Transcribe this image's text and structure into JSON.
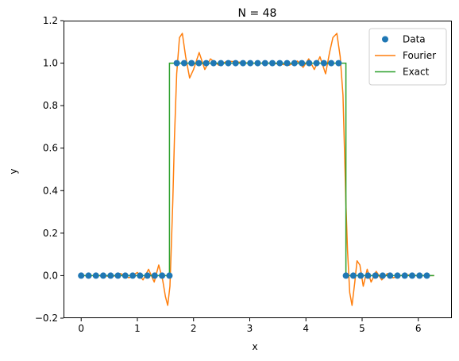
{
  "chart_data": {
    "type": "line",
    "title": "N = 48",
    "xlabel": "x",
    "ylabel": "y",
    "xlim": [
      -0.3142,
      6.5973
    ],
    "ylim": [
      -0.2,
      1.2
    ],
    "xticks": [
      0,
      1,
      2,
      3,
      4,
      5,
      6
    ],
    "yticks": [
      -0.2,
      0.0,
      0.2,
      0.4,
      0.6,
      0.8,
      1.0,
      1.2
    ],
    "xtick_labels": [
      "0",
      "1",
      "2",
      "3",
      "4",
      "5",
      "6"
    ],
    "ytick_labels": [
      "−0.2",
      "0.0",
      "0.2",
      "0.4",
      "0.6",
      "0.8",
      "1.0",
      "1.2"
    ],
    "grid": false,
    "legend_position": "top-right",
    "series": [
      {
        "name": "Data",
        "kind": "scatter",
        "color": "#1f77b4",
        "x": [
          0.0,
          0.1309,
          0.2618,
          0.3927,
          0.5236,
          0.6545,
          0.7854,
          0.9163,
          1.0472,
          1.1781,
          1.309,
          1.4399,
          1.5708,
          1.7017,
          1.8326,
          1.9635,
          2.0944,
          2.2253,
          2.3562,
          2.4871,
          2.618,
          2.7489,
          2.8798,
          3.0107,
          3.1416,
          3.2725,
          3.4034,
          3.5343,
          3.6652,
          3.7961,
          3.927,
          4.0579,
          4.1888,
          4.3197,
          4.4506,
          4.5815,
          4.7124,
          4.8433,
          4.9742,
          5.1051,
          5.236,
          5.3669,
          5.4978,
          5.6287,
          5.7596,
          5.8905,
          6.0214,
          6.1523
        ],
        "y": [
          0,
          0,
          0,
          0,
          0,
          0,
          0,
          0,
          0,
          0,
          0,
          0,
          0,
          1,
          1,
          1,
          1,
          1,
          1,
          1,
          1,
          1,
          1,
          1,
          1,
          1,
          1,
          1,
          1,
          1,
          1,
          1,
          1,
          1,
          1,
          1,
          0,
          0,
          0,
          0,
          0,
          0,
          0,
          0,
          0,
          0,
          0,
          0
        ]
      },
      {
        "name": "Fourier",
        "kind": "line",
        "color": "#ff7f0e",
        "x": [
          0.0,
          0.2,
          0.4,
          0.55,
          0.7,
          0.85,
          1.0,
          1.1,
          1.2,
          1.3,
          1.38,
          1.45,
          1.5,
          1.54,
          1.58,
          1.6,
          1.63,
          1.66,
          1.7,
          1.75,
          1.8,
          1.86,
          1.93,
          2.0,
          2.1,
          2.2,
          2.3,
          2.45,
          2.6,
          3.0,
          3.4,
          3.7,
          3.85,
          3.95,
          4.05,
          4.15,
          4.25,
          4.35,
          4.42,
          4.48,
          4.55,
          4.61,
          4.66,
          4.69,
          4.71,
          4.74,
          4.78,
          4.82,
          4.87,
          4.91,
          4.96,
          5.02,
          5.09,
          5.16,
          5.25,
          5.35,
          5.45,
          5.55,
          5.75,
          6.0,
          6.28
        ],
        "y": [
          0.0,
          0.0,
          0.0,
          -0.005,
          0.01,
          -0.01,
          0.015,
          -0.02,
          0.03,
          -0.03,
          0.05,
          -0.02,
          -0.1,
          -0.14,
          -0.05,
          0.1,
          0.35,
          0.65,
          0.95,
          1.12,
          1.14,
          1.03,
          0.93,
          0.97,
          1.05,
          0.97,
          1.02,
          0.99,
          1.01,
          1.0,
          1.0,
          0.99,
          1.01,
          0.98,
          1.02,
          0.97,
          1.03,
          0.95,
          1.05,
          1.12,
          1.14,
          1.03,
          0.85,
          0.55,
          0.35,
          0.12,
          -0.08,
          -0.14,
          -0.03,
          0.07,
          0.05,
          -0.05,
          0.03,
          -0.03,
          0.02,
          -0.02,
          0.01,
          -0.01,
          0.005,
          0.0,
          0.0
        ]
      },
      {
        "name": "Exact",
        "kind": "step",
        "color": "#2ca02c",
        "x": [
          0.0,
          1.5708,
          1.5708,
          4.7124,
          4.7124,
          6.2832
        ],
        "y": [
          0,
          0,
          1,
          1,
          0,
          0
        ]
      }
    ]
  }
}
